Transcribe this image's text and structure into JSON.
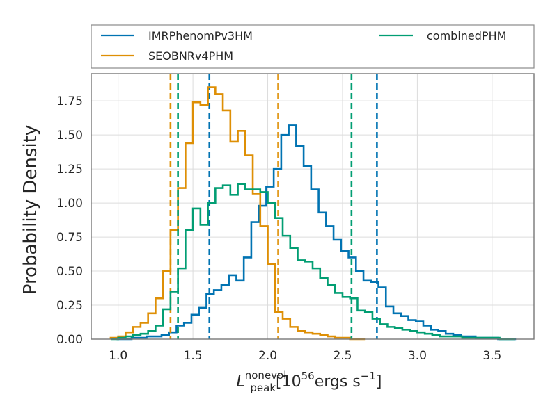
{
  "chart_data": {
    "type": "histogram",
    "xlabel": {
      "symbol": "L",
      "superscript": "nonevol",
      "subscript": "peak",
      "unit_open": "[10",
      "unit_exp": "56",
      "unit_rest": "ergs s",
      "unit_inv": "−1",
      "unit_close": "]"
    },
    "ylabel": "Probability Density",
    "xlim": [
      0.82,
      3.78
    ],
    "ylim": [
      0.0,
      1.95
    ],
    "xticks": [
      1.0,
      1.5,
      2.0,
      2.5,
      3.0,
      3.5
    ],
    "xtick_labels": [
      "1.0",
      "1.5",
      "2.0",
      "2.5",
      "3.0",
      "3.5"
    ],
    "yticks": [
      0.0,
      0.25,
      0.5,
      0.75,
      1.0,
      1.25,
      1.5,
      1.75
    ],
    "ytick_labels": [
      "0.00",
      "0.25",
      "0.50",
      "0.75",
      "1.00",
      "1.25",
      "1.50",
      "1.75"
    ],
    "grid": true,
    "legend_position": "above-plot",
    "series": [
      {
        "name": "IMRPhenomPv3HM",
        "color": "#0173b2",
        "bin_edges": [
          0.99,
          1.04,
          1.09,
          1.14,
          1.19,
          1.24,
          1.29,
          1.34,
          1.39,
          1.44,
          1.49,
          1.54,
          1.59,
          1.64,
          1.69,
          1.74,
          1.79,
          1.84,
          1.89,
          1.94,
          1.99,
          2.04,
          2.09,
          2.14,
          2.19,
          2.24,
          2.29,
          2.34,
          2.39,
          2.44,
          2.49,
          2.54,
          2.59,
          2.64,
          2.69,
          2.74,
          2.79,
          2.84,
          2.89,
          2.94,
          2.99,
          3.04,
          3.09,
          3.14,
          3.19,
          3.24,
          3.29,
          3.34,
          3.39,
          3.44,
          3.49,
          3.54,
          3.59,
          3.64,
          3.66
        ],
        "densities": [
          0.0,
          0.0,
          0.01,
          0.01,
          0.02,
          0.02,
          0.03,
          0.05,
          0.1,
          0.12,
          0.18,
          0.23,
          0.33,
          0.36,
          0.4,
          0.47,
          0.43,
          0.6,
          0.86,
          0.98,
          1.12,
          1.25,
          1.5,
          1.57,
          1.42,
          1.27,
          1.1,
          0.93,
          0.83,
          0.73,
          0.65,
          0.6,
          0.5,
          0.43,
          0.42,
          0.38,
          0.24,
          0.19,
          0.17,
          0.14,
          0.13,
          0.1,
          0.07,
          0.06,
          0.04,
          0.03,
          0.02,
          0.02,
          0.01,
          0.01,
          0.01,
          0.0,
          0.0,
          0.0
        ],
        "credible_bounds": [
          1.61,
          2.73
        ]
      },
      {
        "name": "SEOBNRv4PHM",
        "color": "#de8f05",
        "bin_edges": [
          0.95,
          1.0,
          1.05,
          1.1,
          1.15,
          1.2,
          1.25,
          1.3,
          1.35,
          1.4,
          1.45,
          1.5,
          1.55,
          1.6,
          1.65,
          1.7,
          1.75,
          1.8,
          1.85,
          1.9,
          1.95,
          2.0,
          2.05,
          2.1,
          2.15,
          2.2,
          2.25,
          2.3,
          2.35,
          2.4,
          2.45,
          2.5,
          2.55,
          2.6,
          2.65
        ],
        "densities": [
          0.01,
          0.02,
          0.05,
          0.09,
          0.12,
          0.19,
          0.3,
          0.5,
          0.8,
          1.11,
          1.44,
          1.74,
          1.72,
          1.85,
          1.8,
          1.68,
          1.45,
          1.53,
          1.35,
          1.07,
          0.83,
          0.55,
          0.2,
          0.15,
          0.09,
          0.06,
          0.05,
          0.04,
          0.03,
          0.02,
          0.01,
          0.01,
          0.0,
          0.0
        ],
        "credible_bounds": [
          1.35,
          2.07
        ]
      },
      {
        "name": "combinedPHM",
        "color": "#029e73",
        "bin_edges": [
          0.95,
          1.0,
          1.05,
          1.1,
          1.15,
          1.2,
          1.25,
          1.3,
          1.35,
          1.4,
          1.45,
          1.5,
          1.55,
          1.6,
          1.65,
          1.7,
          1.75,
          1.8,
          1.85,
          1.9,
          1.95,
          2.0,
          2.05,
          2.1,
          2.15,
          2.2,
          2.25,
          2.3,
          2.35,
          2.4,
          2.45,
          2.5,
          2.55,
          2.6,
          2.65,
          2.7,
          2.75,
          2.8,
          2.85,
          2.9,
          2.95,
          3.0,
          3.05,
          3.1,
          3.15,
          3.2,
          3.25,
          3.3,
          3.35,
          3.4,
          3.45,
          3.5,
          3.55,
          3.6,
          3.65
        ],
        "densities": [
          0.0,
          0.01,
          0.02,
          0.03,
          0.04,
          0.06,
          0.1,
          0.22,
          0.35,
          0.52,
          0.8,
          0.96,
          0.84,
          1.0,
          1.11,
          1.13,
          1.06,
          1.14,
          1.1,
          1.1,
          1.08,
          1.0,
          0.89,
          0.76,
          0.67,
          0.58,
          0.57,
          0.52,
          0.45,
          0.4,
          0.34,
          0.31,
          0.3,
          0.21,
          0.2,
          0.15,
          0.11,
          0.09,
          0.08,
          0.07,
          0.06,
          0.05,
          0.04,
          0.03,
          0.02,
          0.02,
          0.02,
          0.01,
          0.01,
          0.01,
          0.01,
          0.01,
          0.0,
          0.0
        ],
        "credible_bounds": [
          1.4,
          2.56
        ]
      }
    ]
  }
}
